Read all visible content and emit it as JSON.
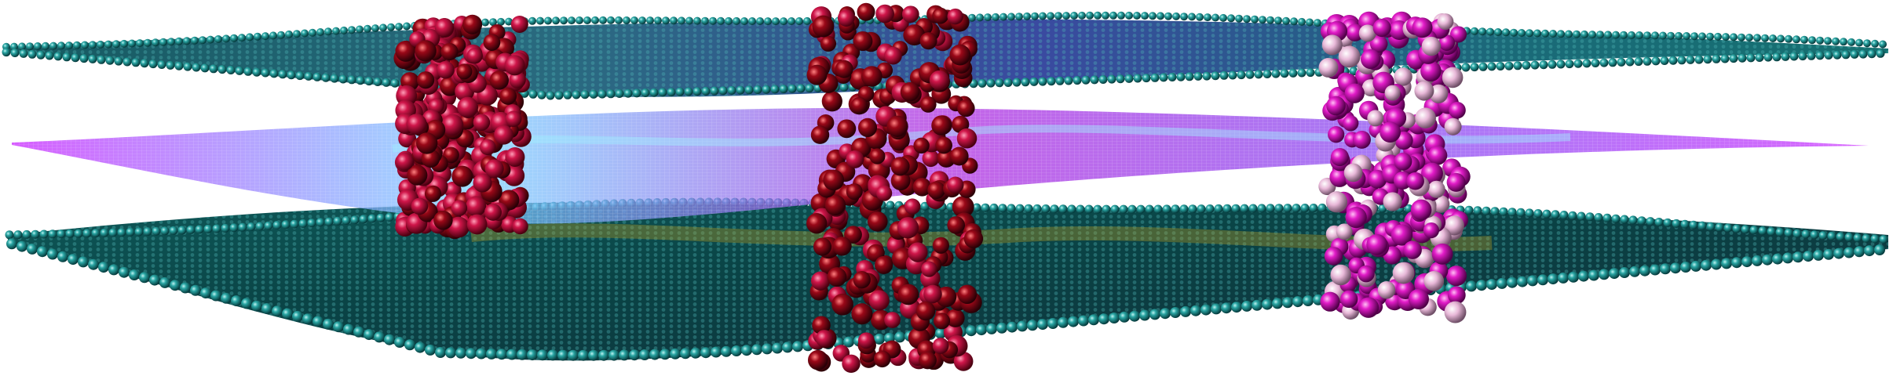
{
  "scene": {
    "subject": "molecular-structure-render",
    "colors": {
      "background": "#ffffff",
      "sheet_teal": "#138a8a",
      "sheet_teal_dark": "#0a4a4c",
      "sheet_highlight": "#6fd8d6",
      "sheet_purple_tint": "#6a4cc8",
      "mesh_magenta": "#c020e0",
      "mesh_cyan": "#55d0f0",
      "pillar_crimson": "#c0103a",
      "pillar_dark_red": "#6a0010",
      "pillar_magenta": "#e020c0",
      "pillar_pale": "#f0c8e0"
    }
  }
}
